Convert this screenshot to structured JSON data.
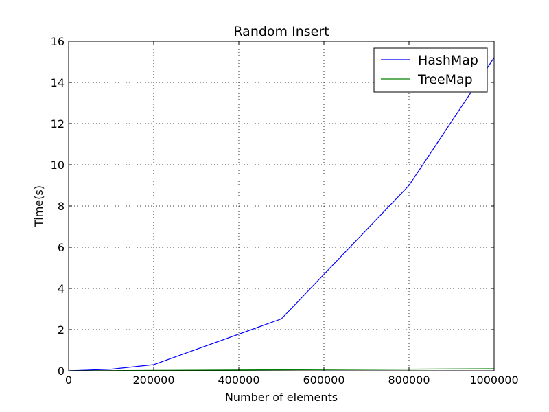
{
  "chart_data": {
    "type": "line",
    "title": "Random Insert",
    "xlabel": "Number of elements",
    "ylabel": "Time(s)",
    "xlim": [
      0,
      1000000
    ],
    "ylim": [
      0,
      16
    ],
    "xticks": [
      0,
      200000,
      400000,
      600000,
      800000,
      1000000
    ],
    "xtick_labels": [
      "0",
      "200000",
      "400000",
      "600000",
      "800000",
      "1000000"
    ],
    "yticks": [
      0,
      2,
      4,
      6,
      8,
      10,
      12,
      14,
      16
    ],
    "ytick_labels": [
      "0",
      "2",
      "4",
      "6",
      "8",
      "10",
      "12",
      "14",
      "16"
    ],
    "grid": true,
    "legend_position": "top-right",
    "series": [
      {
        "name": "HashMap",
        "color": "#0000ff",
        "x": [
          0,
          100000,
          200000,
          500000,
          800000,
          1000000
        ],
        "y": [
          0.0,
          0.08,
          0.3,
          2.52,
          9.0,
          15.2
        ]
      },
      {
        "name": "TreeMap",
        "color": "#008000",
        "x": [
          0,
          100000,
          200000,
          500000,
          800000,
          1000000
        ],
        "y": [
          0.0,
          0.01,
          0.02,
          0.05,
          0.08,
          0.1
        ]
      }
    ]
  }
}
